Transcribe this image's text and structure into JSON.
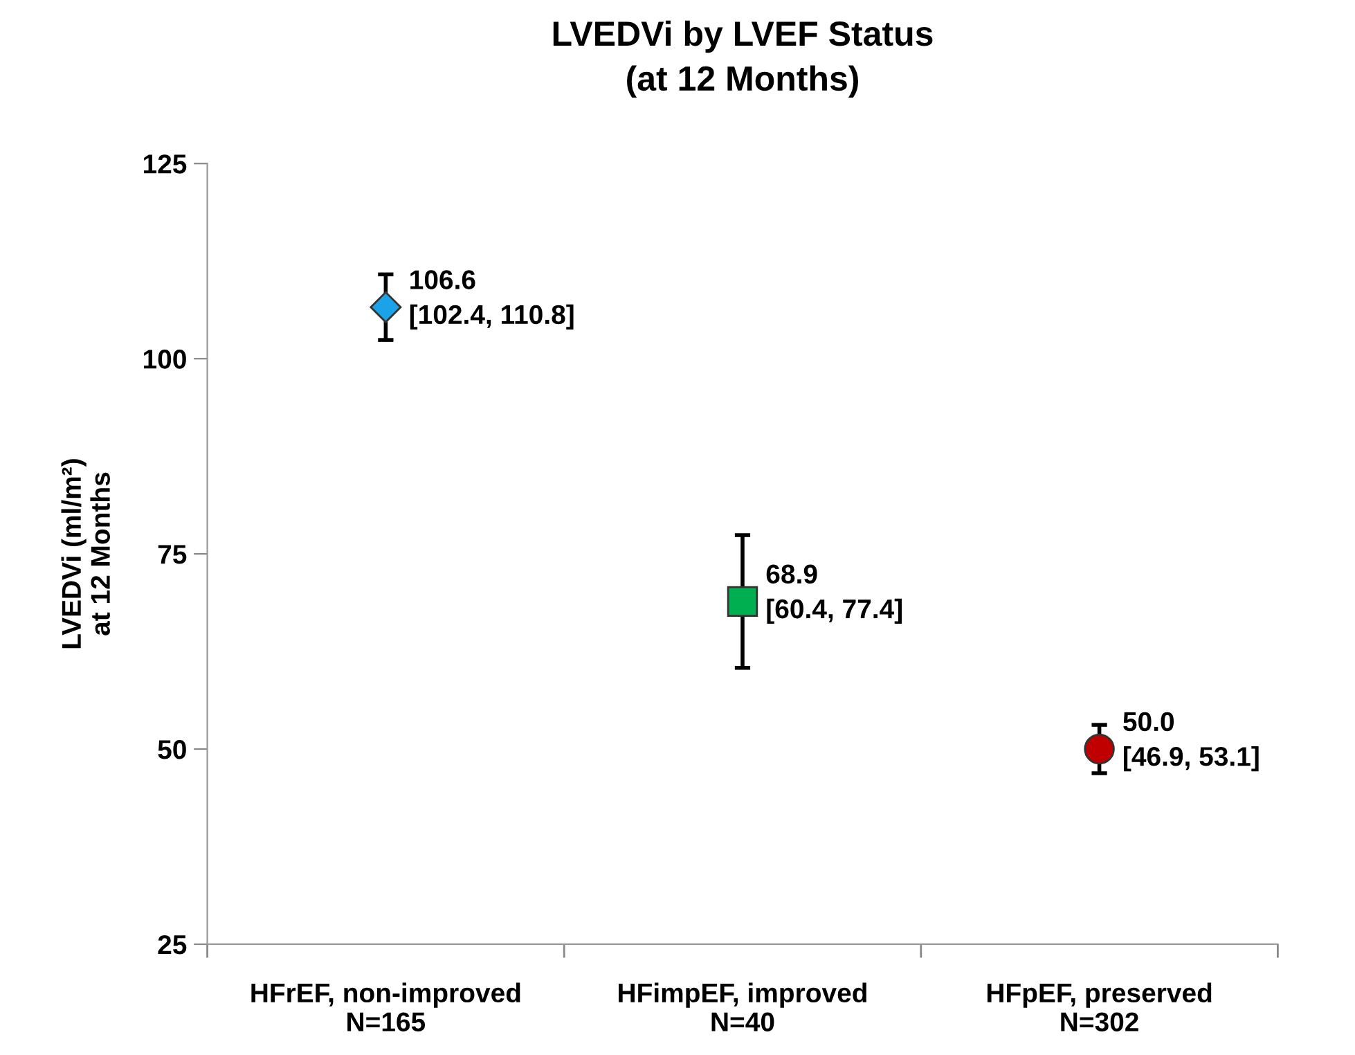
{
  "chart_data": {
    "type": "scatter",
    "title": "LVEDVi by LVEF Status\n(at 12 Months)",
    "ylabel": "LVEDVi (ml/m²)\nat 12 Months",
    "categories": [
      "HFrEF, non-improved\nN=165",
      "HFimpEF, improved\nN=40",
      "HFpEF, preserved\nN=302"
    ],
    "series": [
      {
        "color": "#1aa3e8",
        "marker": "diamond",
        "values": [
          106.6,
          null,
          null
        ],
        "errors": [
          [
            102.4,
            110.8
          ],
          null,
          null
        ],
        "value_labels": [
          "106.6\n[102.4, 110.8]",
          null,
          null
        ]
      },
      {
        "color": "#00b050",
        "marker": "square",
        "values": [
          null,
          68.9,
          null
        ],
        "errors": [
          null,
          [
            60.4,
            77.4
          ],
          null
        ],
        "value_labels": [
          null,
          "68.9\n[60.4, 77.4]",
          null
        ]
      },
      {
        "color": "#c00000",
        "marker": "circle",
        "values": [
          null,
          null,
          50.0
        ],
        "errors": [
          null,
          null,
          [
            46.9,
            53.1
          ]
        ],
        "value_labels": [
          null,
          null,
          "50.0\n[46.9, 53.1]"
        ]
      }
    ],
    "ylim": [
      25,
      125
    ],
    "yticks": [
      25,
      50,
      75,
      100,
      125
    ],
    "grid": false,
    "legend": false
  }
}
